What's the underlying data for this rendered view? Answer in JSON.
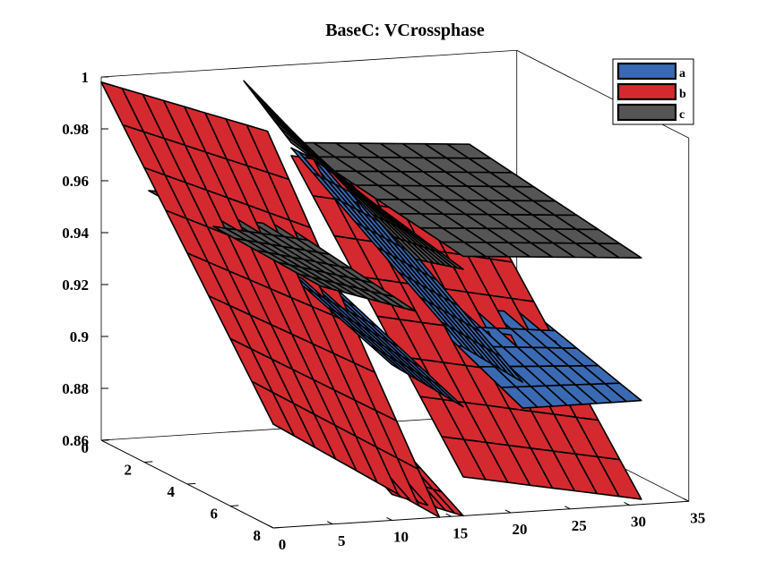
{
  "chart_data": {
    "type": "surface3d",
    "title": "BaseC: VCrossphase",
    "xlabel": "",
    "ylabel": "",
    "zlabel": "",
    "x_ticks": [
      0,
      5,
      10,
      15,
      20,
      25,
      30,
      35
    ],
    "y_ticks": [
      0,
      2,
      4,
      6,
      8
    ],
    "z_ticks": [
      0.86,
      0.88,
      0.9,
      0.92,
      0.94,
      0.96,
      0.98,
      1
    ],
    "xlim": [
      0,
      35
    ],
    "ylim": [
      0,
      8
    ],
    "zlim": [
      0.86,
      1
    ],
    "grid": false,
    "legend": {
      "position": "top-right",
      "entries": [
        "a",
        "b",
        "c"
      ]
    },
    "series": [
      {
        "name": "a",
        "color": "#3a6ab4",
        "surfaces": [
          {
            "x": [
              10,
              16
            ],
            "y": [
              0,
              8
            ],
            "z": [
              [
                0.945,
                0.93
              ],
              [
                0.92,
                0.902
              ]
            ]
          },
          {
            "x": [
              16,
              21
            ],
            "y": [
              0,
              8
            ],
            "z": [
              [
                0.968,
                0.955
              ],
              [
                0.925,
                0.91
              ]
            ]
          },
          {
            "x": [
              21,
              31
            ],
            "y": [
              0,
              8
            ],
            "z": [
              [
                0.93,
                0.92
              ],
              [
                0.9,
                0.9
              ]
            ]
          }
        ]
      },
      {
        "name": "b",
        "color": "#d42a2f",
        "surfaces": [
          {
            "x": [
              0,
              14
            ],
            "y": [
              0,
              8
            ],
            "z": [
              [
                0.998,
                0.975
              ],
              [
                0.9,
                0.86
              ]
            ]
          },
          {
            "x": [
              10,
              16
            ],
            "y": [
              0,
              8
            ],
            "z": [
              [
                0.912,
                0.9
              ],
              [
                0.87,
                0.86
              ]
            ]
          },
          {
            "x": [
              16,
              31
            ],
            "y": [
              0,
              8
            ],
            "z": [
              [
                0.965,
                0.95
              ],
              [
                0.875,
                0.862
              ]
            ]
          }
        ]
      },
      {
        "name": "c",
        "color": "#555555",
        "surfaces": [
          {
            "x": [
              4,
              12
            ],
            "y": [
              0,
              8
            ],
            "z": [
              [
                0.955,
                0.95
              ],
              [
                0.952,
                0.94
              ]
            ]
          },
          {
            "x": [
              12,
              16
            ],
            "y": [
              0,
              8
            ],
            "z": [
              [
                0.995,
                0.97
              ],
              [
                0.96,
                0.955
              ]
            ]
          },
          {
            "x": [
              16,
              31
            ],
            "y": [
              0,
              8
            ],
            "z": [
              [
                0.97,
                0.965
              ],
              [
                0.96,
                0.955
              ]
            ]
          }
        ]
      }
    ]
  }
}
